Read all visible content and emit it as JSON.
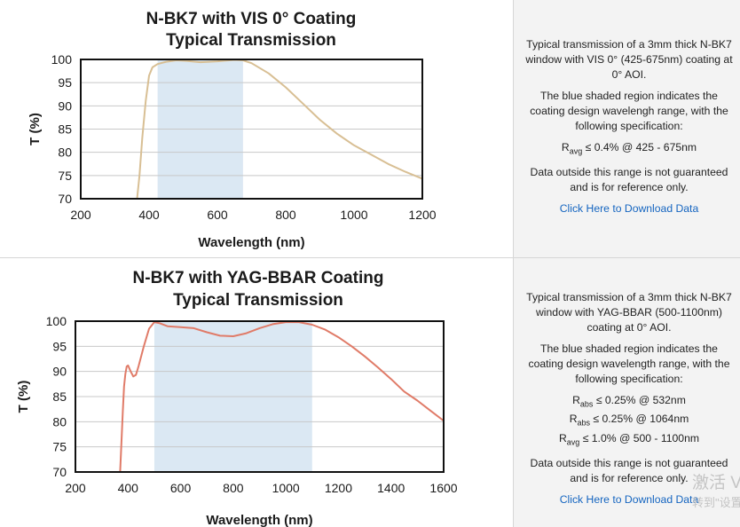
{
  "chart_data": [
    {
      "type": "line",
      "title": "N-BK7 with VIS 0° Coating",
      "subtitle": "Typical Transmission",
      "xlabel": "Wavelength (nm)",
      "ylabel": "T (%)",
      "xlim": [
        200,
        1200
      ],
      "ylim": [
        70,
        100
      ],
      "xticks": [
        200,
        400,
        600,
        800,
        1000,
        1200
      ],
      "yticks": [
        70,
        75,
        80,
        85,
        90,
        95,
        100
      ],
      "grid": "horizontal",
      "shaded_band": [
        425,
        675
      ],
      "band_color": "#dbe8f3",
      "line_color": "#d8bf94",
      "series": [
        {
          "x": [
            365,
            372,
            380,
            390,
            400,
            410,
            425,
            450,
            480,
            510,
            550,
            600,
            650,
            675,
            700,
            750,
            800,
            850,
            900,
            950,
            1000,
            1050,
            1100,
            1150,
            1200
          ],
          "y": [
            70,
            75,
            83,
            91,
            96.5,
            98.3,
            99,
            99.5,
            99.8,
            99.7,
            99.4,
            99.6,
            99.9,
            99.8,
            99.2,
            97,
            94,
            90.5,
            87,
            84,
            81.5,
            79.5,
            77.5,
            75.8,
            74.3
          ]
        }
      ]
    },
    {
      "type": "line",
      "title": "N-BK7 with YAG-BBAR Coating",
      "subtitle": "Typical Transmission",
      "xlabel": "Wavelength (nm)",
      "ylabel": "T (%)",
      "xlim": [
        200,
        1600
      ],
      "ylim": [
        70,
        100
      ],
      "xticks": [
        200,
        400,
        600,
        800,
        1000,
        1200,
        1400,
        1600
      ],
      "yticks": [
        70,
        75,
        80,
        85,
        90,
        95,
        100
      ],
      "grid": "horizontal",
      "shaded_band": [
        500,
        1100
      ],
      "band_color": "#dbe8f3",
      "line_color": "#e07b68",
      "series": [
        {
          "x": [
            370,
            375,
            380,
            385,
            390,
            395,
            400,
            410,
            420,
            430,
            440,
            460,
            480,
            500,
            520,
            550,
            600,
            650,
            700,
            750,
            800,
            850,
            900,
            950,
            1000,
            1050,
            1100,
            1150,
            1200,
            1250,
            1300,
            1350,
            1400,
            1450,
            1500,
            1550,
            1600
          ],
          "y": [
            70,
            76,
            82,
            87,
            89.5,
            91,
            91.2,
            90,
            89,
            89.3,
            91,
            95,
            98.5,
            99.8,
            99.6,
            99,
            98.8,
            98.6,
            97.8,
            97.1,
            97,
            97.6,
            98.6,
            99.4,
            99.8,
            99.8,
            99.3,
            98.3,
            96.8,
            95,
            93,
            90.8,
            88.5,
            86,
            84.2,
            82.2,
            80.2
          ]
        }
      ]
    }
  ],
  "descriptions": [
    {
      "intro": "Typical transmission of a 3mm thick N-BK7 window with VIS 0° (425-675nm) coating at 0° AOI.",
      "band_note": "The blue shaded region indicates the coating design wavelengh range, with the following specification:",
      "specs": [
        {
          "prefix": "R",
          "sub": "avg",
          "text": " ≤ 0.4% @ 425 - 675nm"
        }
      ],
      "disclaimer": "Data outside this range is not guaranteed and is for reference only.",
      "link": "Click Here to Download Data"
    },
    {
      "intro": "Typical transmission of a 3mm thick N-BK7 window with YAG-BBAR (500-1100nm) coating at 0° AOI.",
      "band_note": "The blue shaded region indicates the coating design wavelength range, with the following specification:",
      "specs": [
        {
          "prefix": "R",
          "sub": "abs",
          "text": " ≤ 0.25% @ 532nm"
        },
        {
          "prefix": "R",
          "sub": "abs",
          "text": " ≤ 0.25% @ 1064nm"
        },
        {
          "prefix": "R",
          "sub": "avg",
          "text": " ≤ 1.0% @ 500 - 1100nm"
        }
      ],
      "disclaimer": "Data outside this range is not guaranteed and is for reference only.",
      "link": "Click Here to Download Data"
    }
  ],
  "watermark": {
    "line1": "激活 V",
    "line2": "转到\"设置"
  }
}
